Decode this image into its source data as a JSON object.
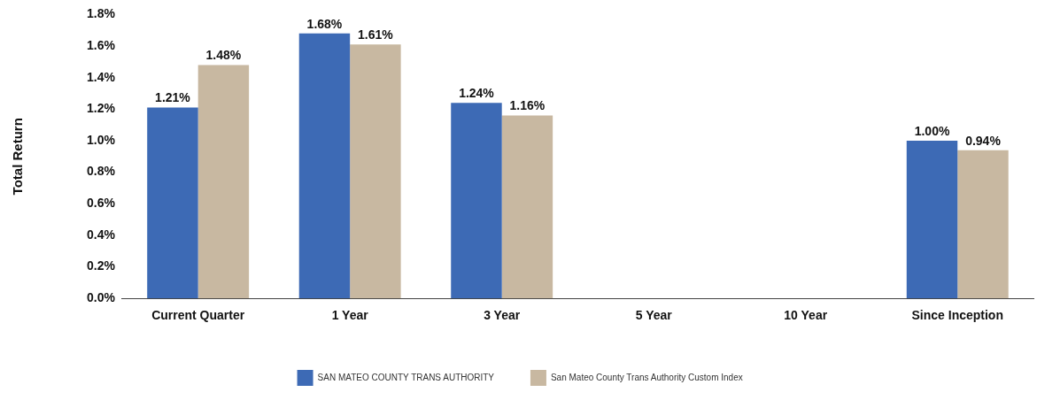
{
  "chart_data": {
    "type": "bar",
    "ylabel": "Total Return",
    "categories": [
      "Current Quarter",
      "1 Year",
      "3 Year",
      "5 Year",
      "10 Year",
      "Since Inception"
    ],
    "series": [
      {
        "name": "SAN MATEO COUNTY TRANS AUTHORITY",
        "color": "#3d6ab5",
        "values": [
          1.21,
          1.68,
          1.24,
          null,
          null,
          1.0
        ],
        "value_labels": [
          "1.21%",
          "1.68%",
          "1.24%",
          null,
          null,
          "1.00%"
        ]
      },
      {
        "name": "San Mateo County Trans Authority Custom Index",
        "color": "#c8b8a1",
        "values": [
          1.48,
          1.61,
          1.16,
          null,
          null,
          0.94
        ],
        "value_labels": [
          "1.48%",
          "1.61%",
          "1.16%",
          null,
          null,
          "0.94%"
        ]
      }
    ],
    "ylim": [
      0,
      1.8
    ],
    "yticks": [
      {
        "value": 0,
        "label": "0.0%"
      },
      {
        "value": 0.2,
        "label": "0.2%"
      },
      {
        "value": 0.4,
        "label": "0.4%"
      },
      {
        "value": 0.6,
        "label": "0.6%"
      },
      {
        "value": 0.8,
        "label": "0.8%"
      },
      {
        "value": 1.0,
        "label": "1.0%"
      },
      {
        "value": 1.2,
        "label": "1.2%"
      },
      {
        "value": 1.4,
        "label": "1.4%"
      },
      {
        "value": 1.6,
        "label": "1.6%"
      },
      {
        "value": 1.8,
        "label": "1.8%"
      }
    ],
    "grid": false,
    "legend": "bottom"
  }
}
